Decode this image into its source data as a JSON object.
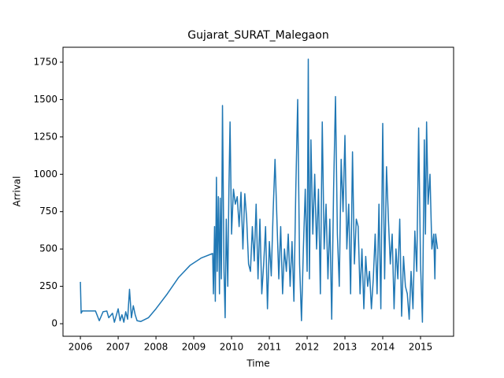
{
  "chart_data": {
    "type": "line",
    "title": "Gujarat_SURAT_Malegaon",
    "x_label": "Time",
    "y_label": "Arrival",
    "color": "#1f77b4",
    "xlim": [
      2005.54,
      2015.875
    ],
    "xticks": [
      2006,
      2007,
      2008,
      2009,
      2010,
      2011,
      2012,
      2013,
      2014,
      2015
    ],
    "ylim": [
      -84,
      1850
    ],
    "yticks": [
      0,
      250,
      500,
      750,
      1000,
      1250,
      1500,
      1750
    ],
    "x": [
      2006.0,
      2006.02,
      2006.05,
      2006.4,
      2006.5,
      2006.6,
      2006.7,
      2006.75,
      2006.85,
      2006.9,
      2007.0,
      2007.05,
      2007.1,
      2007.15,
      2007.2,
      2007.25,
      2007.3,
      2007.35,
      2007.4,
      2007.45,
      2007.5,
      2007.6,
      2007.8,
      2008.0,
      2008.3,
      2008.6,
      2008.9,
      2009.2,
      2009.5,
      2009.52,
      2009.55,
      2009.57,
      2009.6,
      2009.62,
      2009.65,
      2009.68,
      2009.7,
      2009.73,
      2009.76,
      2009.8,
      2009.83,
      2009.86,
      2009.9,
      2009.93,
      2009.96,
      2010.0,
      2010.05,
      2010.1,
      2010.15,
      2010.2,
      2010.25,
      2010.3,
      2010.35,
      2010.4,
      2010.45,
      2010.5,
      2010.55,
      2010.6,
      2010.65,
      2010.7,
      2010.75,
      2010.8,
      2010.85,
      2010.9,
      2010.95,
      2011.0,
      2011.05,
      2011.1,
      2011.15,
      2011.2,
      2011.25,
      2011.3,
      2011.35,
      2011.4,
      2011.45,
      2011.5,
      2011.55,
      2011.6,
      2011.65,
      2011.7,
      2011.75,
      2011.8,
      2011.85,
      2011.9,
      2011.95,
      2012.0,
      2012.03,
      2012.06,
      2012.1,
      2012.15,
      2012.2,
      2012.25,
      2012.3,
      2012.35,
      2012.4,
      2012.45,
      2012.5,
      2012.55,
      2012.6,
      2012.65,
      2012.7,
      2012.75,
      2012.8,
      2012.85,
      2012.9,
      2012.95,
      2013.0,
      2013.05,
      2013.1,
      2013.15,
      2013.2,
      2013.25,
      2013.3,
      2013.35,
      2013.4,
      2013.45,
      2013.5,
      2013.55,
      2013.6,
      2013.65,
      2013.7,
      2013.75,
      2013.8,
      2013.85,
      2013.9,
      2013.95,
      2014.0,
      2014.05,
      2014.1,
      2014.15,
      2014.2,
      2014.25,
      2014.3,
      2014.35,
      2014.4,
      2014.45,
      2014.5,
      2014.55,
      2014.6,
      2014.65,
      2014.7,
      2014.75,
      2014.8,
      2014.85,
      2014.9,
      2014.95,
      2015.0,
      2015.05,
      2015.1,
      2015.13,
      2015.16,
      2015.2,
      2015.25,
      2015.3,
      2015.35,
      2015.38,
      2015.4,
      2015.45
    ],
    "values": [
      280,
      70,
      85,
      85,
      20,
      80,
      85,
      40,
      70,
      10,
      100,
      20,
      60,
      10,
      80,
      30,
      230,
      40,
      120,
      60,
      20,
      15,
      40,
      100,
      200,
      310,
      390,
      440,
      470,
      200,
      650,
      150,
      980,
      350,
      850,
      200,
      840,
      300,
      1460,
      350,
      40,
      700,
      250,
      900,
      1350,
      600,
      900,
      800,
      850,
      650,
      880,
      500,
      870,
      700,
      400,
      350,
      650,
      420,
      800,
      300,
      700,
      200,
      400,
      650,
      100,
      550,
      320,
      750,
      1100,
      700,
      300,
      650,
      200,
      500,
      350,
      600,
      250,
      550,
      150,
      900,
      1500,
      400,
      20,
      500,
      900,
      350,
      1770,
      300,
      1230,
      600,
      1000,
      500,
      900,
      200,
      1350,
      500,
      800,
      300,
      700,
      30,
      900,
      1520,
      600,
      250,
      1100,
      750,
      1260,
      500,
      800,
      200,
      1150,
      400,
      700,
      650,
      200,
      500,
      100,
      450,
      250,
      350,
      100,
      300,
      600,
      200,
      800,
      100,
      1340,
      300,
      1050,
      700,
      400,
      600,
      100,
      500,
      300,
      700,
      50,
      450,
      250,
      200,
      30,
      350,
      100,
      620,
      350,
      1310,
      400,
      10,
      1230,
      600,
      1350,
      800,
      1000,
      500,
      600,
      300,
      600,
      500
    ]
  }
}
